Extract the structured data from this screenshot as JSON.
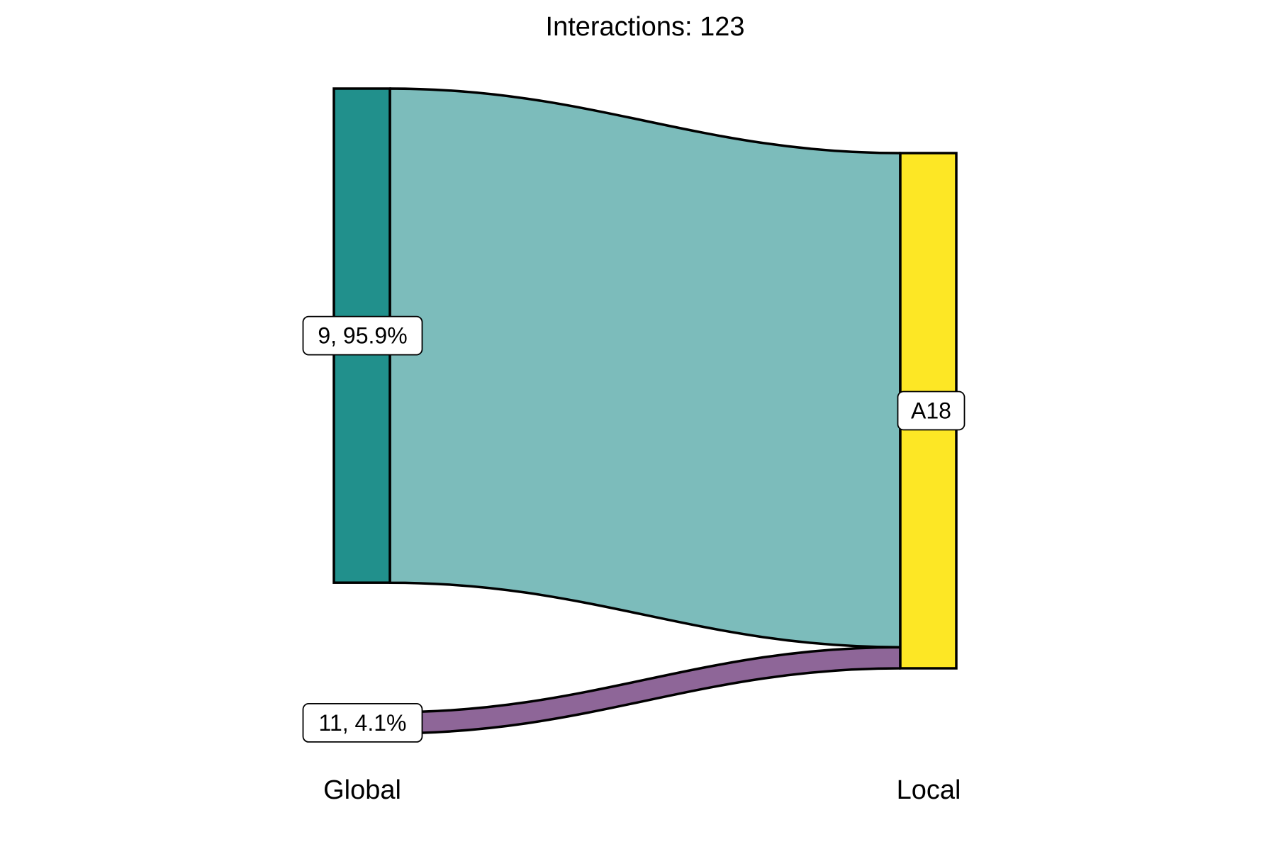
{
  "chart_data": {
    "type": "sankey",
    "title": "Interactions: 123",
    "axes": [
      {
        "label": "Global"
      },
      {
        "label": "Local"
      }
    ],
    "sources": [
      {
        "label": "9, 95.9%",
        "share": 95.9,
        "color": "#21908C"
      },
      {
        "label": "11, 4.1%",
        "share": 4.1,
        "color": "#8E6698"
      }
    ],
    "targets": [
      {
        "label": "A18",
        "share": 100,
        "color": "#FDE725"
      }
    ],
    "flows": [
      {
        "from": "9, 95.9%",
        "to": "A18",
        "share": 95.9,
        "color": "#7CBCBB"
      },
      {
        "from": "11, 4.1%",
        "to": "A18",
        "share": 4.1,
        "color": "#8E6698"
      }
    ],
    "legend": "none",
    "grid": false
  }
}
